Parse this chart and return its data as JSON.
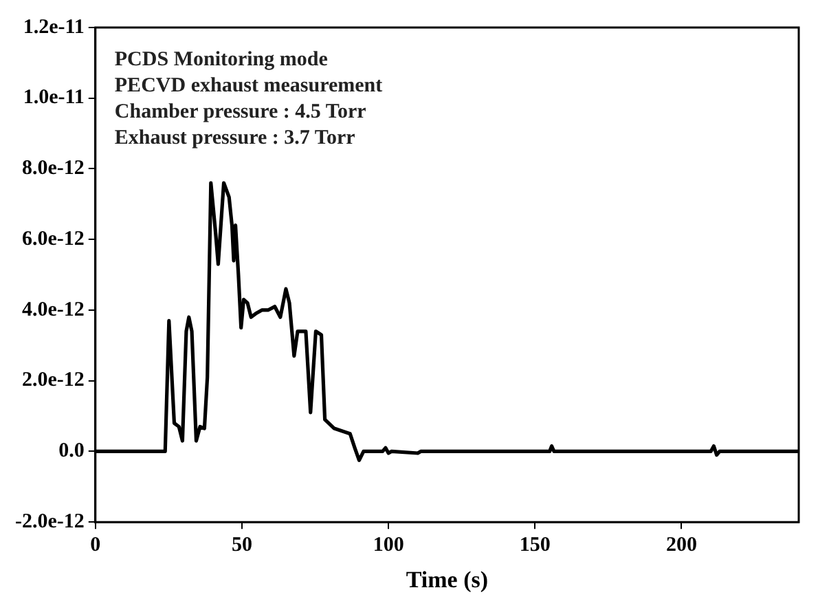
{
  "chart_data": {
    "type": "line",
    "xlabel": "Time (s)",
    "annotations": [
      "PCDS Monitoring mode",
      "PECVD exhaust measurement",
      "Chamber pressure : 4.5 Torr",
      "Exhaust pressure : 3.7 Torr"
    ],
    "xlim": [
      0,
      240
    ],
    "xticks": [
      0,
      50,
      100,
      150,
      200
    ],
    "ylim": [
      -2e-12,
      1.2e-11
    ],
    "yticks": [
      {
        "value": -2e-12,
        "label": "-2.0e-12"
      },
      {
        "value": 0,
        "label": "0.0"
      },
      {
        "value": 2e-12,
        "label": "2.0e-12"
      },
      {
        "value": 4e-12,
        "label": "4.0e-12"
      },
      {
        "value": 6e-12,
        "label": "6.0e-12"
      },
      {
        "value": 8e-12,
        "label": "8.0e-12"
      },
      {
        "value": 1e-11,
        "label": "1.0e-11"
      },
      {
        "value": 1.2e-11,
        "label": "1.2e-11"
      }
    ],
    "grid": false,
    "legend": false,
    "marker": "none",
    "line_style": "solid",
    "series": [
      {
        "color": "#000000",
        "x": [
          0,
          23.8,
          25.1,
          26.9,
          28.5,
          29.7,
          31,
          31.9,
          32.9,
          34.4,
          35.7,
          37.2,
          38.2,
          39.4,
          41,
          41.9,
          43.8,
          45.6,
          46.6,
          47.2,
          47.8,
          48.8,
          49.7,
          50.6,
          51.9,
          53.1,
          54.7,
          56.8,
          58.9,
          61.2,
          63.1,
          65,
          66.2,
          67.8,
          69,
          71.8,
          73.4,
          75.2,
          77.1,
          78.3,
          81.5,
          86.9,
          88.5,
          90,
          91.5,
          98,
          99,
          100,
          101,
          110,
          111,
          155,
          155.7,
          156.5,
          210,
          211,
          212,
          213,
          240
        ],
        "values": [
          0,
          0,
          3.7e-12,
          8e-13,
          7e-13,
          3e-13,
          3.4e-12,
          3.8e-12,
          3.4e-12,
          3e-13,
          7e-13,
          6.5e-13,
          2.1e-12,
          7.6e-12,
          6.2e-12,
          5.3e-12,
          7.6e-12,
          7.2e-12,
          6.4e-12,
          5.4e-12,
          6.4e-12,
          5e-12,
          3.5e-12,
          4.3e-12,
          4.2e-12,
          3.8e-12,
          3.9e-12,
          4e-12,
          4e-12,
          4.1e-12,
          3.8e-12,
          4.6e-12,
          4.2e-12,
          2.7e-12,
          3.4e-12,
          3.4e-12,
          1.1e-12,
          3.4e-12,
          3.3e-12,
          9e-13,
          6.5e-13,
          5e-13,
          1e-13,
          -2.5e-13,
          0,
          0,
          1e-13,
          -5e-14,
          0,
          -5e-14,
          0,
          0,
          1.5e-13,
          0,
          0,
          1.5e-13,
          -1e-13,
          0,
          0
        ]
      }
    ]
  }
}
